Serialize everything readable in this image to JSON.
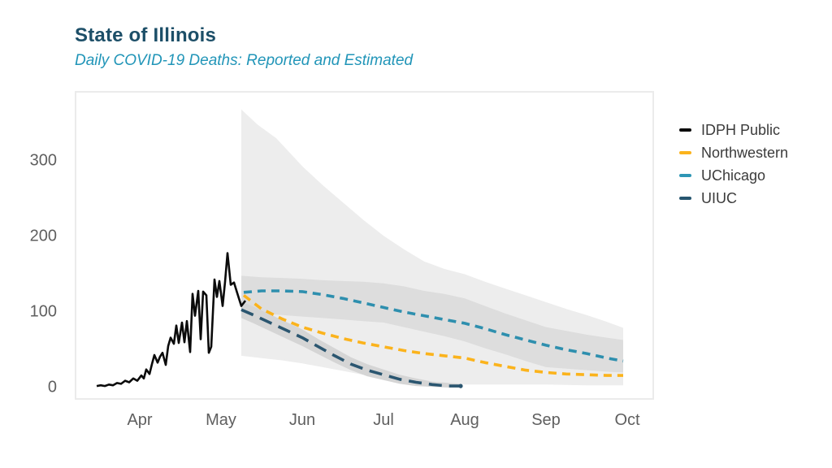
{
  "header": {
    "title": "State of Illinois",
    "subtitle": "Daily COVID-19 Deaths: Reported and Estimated"
  },
  "colors": {
    "title": "#1d4f68",
    "subtitle": "#2195b8",
    "axis_text": "#5f5f5f",
    "plot_border": "#ebebeb",
    "idph": "#0b0b0b",
    "northwestern": "#fbb31c",
    "uchicago": "#2e8fae",
    "uiuc": "#2b5670",
    "band_wide": "#ededed",
    "band_inner": "#dddddd",
    "band_uiuc": "#d5d5d5"
  },
  "legend": {
    "items": [
      {
        "id": "idph",
        "label": "IDPH Public",
        "color": "#0b0b0b"
      },
      {
        "id": "northwestern",
        "label": "Northwestern",
        "color": "#fbb31c"
      },
      {
        "id": "uchicago",
        "label": "UChicago",
        "color": "#2e96b5"
      },
      {
        "id": "uiuc",
        "label": "UIUC",
        "color": "#27566f"
      }
    ]
  },
  "chart_data": {
    "type": "line",
    "title": "State of Illinois",
    "subtitle": "Daily COVID-19 Deaths: Reported and Estimated",
    "xlabel": "",
    "ylabel": "",
    "x_unit": "months after Apr 1 (0 = Apr 1, 1 = May 1, ...)",
    "x_ticks": [
      {
        "t": 0,
        "label": "Apr"
      },
      {
        "t": 1,
        "label": "May"
      },
      {
        "t": 2,
        "label": "Jun"
      },
      {
        "t": 3,
        "label": "Jul"
      },
      {
        "t": 4,
        "label": "Aug"
      },
      {
        "t": 5,
        "label": "Sep"
      },
      {
        "t": 6,
        "label": "Oct"
      }
    ],
    "y_ticks": [
      0,
      100,
      200,
      300
    ],
    "ylim": [
      0,
      392
    ],
    "grid": false,
    "legend_position": "right-outside",
    "series": [
      {
        "id": "idph",
        "name": "IDPH Public",
        "style": "solid",
        "color": "#0b0b0b",
        "width": 2.6,
        "points": [
          [
            -0.53,
            2
          ],
          [
            -0.48,
            3
          ],
          [
            -0.43,
            2
          ],
          [
            -0.38,
            4
          ],
          [
            -0.33,
            3
          ],
          [
            -0.28,
            6
          ],
          [
            -0.23,
            5
          ],
          [
            -0.18,
            9
          ],
          [
            -0.13,
            7
          ],
          [
            -0.08,
            12
          ],
          [
            -0.03,
            9
          ],
          [
            0.02,
            16
          ],
          [
            0.05,
            12
          ],
          [
            0.08,
            24
          ],
          [
            0.12,
            18
          ],
          [
            0.15,
            31
          ],
          [
            0.18,
            43
          ],
          [
            0.22,
            33
          ],
          [
            0.25,
            41
          ],
          [
            0.28,
            46
          ],
          [
            0.32,
            30
          ],
          [
            0.35,
            55
          ],
          [
            0.38,
            66
          ],
          [
            0.42,
            58
          ],
          [
            0.45,
            82
          ],
          [
            0.48,
            59
          ],
          [
            0.52,
            86
          ],
          [
            0.55,
            60
          ],
          [
            0.58,
            88
          ],
          [
            0.62,
            47
          ],
          [
            0.65,
            124
          ],
          [
            0.68,
            95
          ],
          [
            0.72,
            128
          ],
          [
            0.75,
            64
          ],
          [
            0.78,
            127
          ],
          [
            0.82,
            122
          ],
          [
            0.85,
            46
          ],
          [
            0.88,
            54
          ],
          [
            0.92,
            143
          ],
          [
            0.95,
            120
          ],
          [
            0.98,
            141
          ],
          [
            1.02,
            108
          ],
          [
            1.05,
            140
          ],
          [
            1.08,
            178
          ],
          [
            1.12,
            136
          ],
          [
            1.16,
            139
          ],
          [
            1.2,
            125
          ],
          [
            1.25,
            108
          ],
          [
            1.3,
            115
          ]
        ]
      },
      {
        "id": "northwestern",
        "name": "Northwestern",
        "style": "dashed",
        "color": "#fbb31c",
        "width": 3.6,
        "dash": "10 7",
        "points": [
          [
            1.28,
            122
          ],
          [
            1.5,
            104
          ],
          [
            1.75,
            91
          ],
          [
            2.0,
            80
          ],
          [
            2.25,
            72
          ],
          [
            2.5,
            65
          ],
          [
            2.75,
            59
          ],
          [
            3.0,
            54
          ],
          [
            3.25,
            49
          ],
          [
            3.5,
            45
          ],
          [
            3.75,
            42
          ],
          [
            4.0,
            39
          ],
          [
            4.25,
            33
          ],
          [
            4.5,
            28
          ],
          [
            4.75,
            23
          ],
          [
            5.0,
            20
          ],
          [
            5.25,
            18
          ],
          [
            5.5,
            17
          ],
          [
            5.75,
            16
          ],
          [
            5.95,
            16
          ]
        ]
      },
      {
        "id": "uchicago",
        "name": "UChicago",
        "style": "dashed",
        "color": "#2e8fae",
        "width": 3.6,
        "dash": "10 7",
        "points": [
          [
            1.28,
            126
          ],
          [
            1.5,
            128
          ],
          [
            1.75,
            128
          ],
          [
            2.0,
            127
          ],
          [
            2.25,
            123
          ],
          [
            2.5,
            118
          ],
          [
            2.75,
            112
          ],
          [
            3.0,
            106
          ],
          [
            3.25,
            100
          ],
          [
            3.5,
            95
          ],
          [
            3.75,
            90
          ],
          [
            4.0,
            85
          ],
          [
            4.25,
            78
          ],
          [
            4.5,
            70
          ],
          [
            4.75,
            63
          ],
          [
            5.0,
            56
          ],
          [
            5.25,
            50
          ],
          [
            5.5,
            45
          ],
          [
            5.75,
            39
          ],
          [
            5.95,
            35
          ]
        ]
      },
      {
        "id": "uiuc",
        "name": "UIUC",
        "style": "dashed",
        "color": "#2b5670",
        "width": 3.6,
        "dash": "16 9",
        "end_marker": true,
        "points": [
          [
            1.25,
            103
          ],
          [
            1.4,
            96
          ],
          [
            1.6,
            86
          ],
          [
            1.8,
            76
          ],
          [
            2.0,
            66
          ],
          [
            2.2,
            54
          ],
          [
            2.4,
            42
          ],
          [
            2.6,
            31
          ],
          [
            2.8,
            23
          ],
          [
            3.0,
            17
          ],
          [
            3.2,
            11
          ],
          [
            3.4,
            7
          ],
          [
            3.6,
            4
          ],
          [
            3.8,
            2
          ],
          [
            3.95,
            2
          ]
        ]
      }
    ],
    "bands": [
      {
        "id": "uchicago-wide",
        "name": "UChicago wide interval",
        "color": "#ededed",
        "upper": [
          [
            1.25,
            368
          ],
          [
            1.45,
            348
          ],
          [
            1.68,
            330
          ],
          [
            2.0,
            293
          ],
          [
            2.25,
            268
          ],
          [
            2.5,
            245
          ],
          [
            2.75,
            222
          ],
          [
            3.0,
            201
          ],
          [
            3.25,
            183
          ],
          [
            3.5,
            167
          ],
          [
            3.75,
            157
          ],
          [
            4.0,
            150
          ],
          [
            4.25,
            140
          ],
          [
            4.5,
            131
          ],
          [
            4.75,
            122
          ],
          [
            5.0,
            113
          ],
          [
            5.25,
            104
          ],
          [
            5.5,
            96
          ],
          [
            5.75,
            87
          ],
          [
            5.95,
            79
          ]
        ],
        "lower": [
          [
            1.25,
            42
          ],
          [
            1.5,
            39
          ],
          [
            1.75,
            36
          ],
          [
            2.0,
            32
          ],
          [
            2.25,
            27
          ],
          [
            2.5,
            22
          ],
          [
            2.75,
            17
          ],
          [
            3.0,
            12
          ],
          [
            3.25,
            9
          ],
          [
            3.5,
            7
          ],
          [
            3.75,
            5
          ],
          [
            4.0,
            4
          ],
          [
            4.5,
            4
          ],
          [
            5.0,
            4
          ],
          [
            5.5,
            3
          ],
          [
            5.95,
            3
          ]
        ]
      },
      {
        "id": "uchicago-inner",
        "name": "UChicago inner interval",
        "color": "#dddddd",
        "upper": [
          [
            1.25,
            148
          ],
          [
            1.5,
            146
          ],
          [
            1.75,
            145
          ],
          [
            2.0,
            144
          ],
          [
            2.25,
            142
          ],
          [
            2.5,
            141
          ],
          [
            2.75,
            140
          ],
          [
            3.0,
            138
          ],
          [
            3.25,
            134
          ],
          [
            3.5,
            128
          ],
          [
            3.75,
            124
          ],
          [
            4.0,
            118
          ],
          [
            4.25,
            108
          ],
          [
            4.5,
            98
          ],
          [
            4.75,
            89
          ],
          [
            5.0,
            80
          ],
          [
            5.25,
            75
          ],
          [
            5.5,
            70
          ],
          [
            5.75,
            66
          ],
          [
            5.95,
            63
          ]
        ],
        "lower": [
          [
            1.25,
            101
          ],
          [
            1.5,
            98
          ],
          [
            1.75,
            96
          ],
          [
            2.0,
            94
          ],
          [
            2.25,
            92
          ],
          [
            2.5,
            90
          ],
          [
            2.75,
            88
          ],
          [
            3.0,
            86
          ],
          [
            3.25,
            80
          ],
          [
            3.5,
            74
          ],
          [
            3.75,
            68
          ],
          [
            4.0,
            61
          ],
          [
            4.25,
            52
          ],
          [
            4.5,
            44
          ],
          [
            4.75,
            35
          ],
          [
            5.0,
            27
          ],
          [
            5.25,
            25
          ],
          [
            5.5,
            23
          ],
          [
            5.75,
            21
          ],
          [
            5.95,
            20
          ]
        ]
      },
      {
        "id": "uiuc-band",
        "name": "UIUC interval",
        "color": "#d5d5d5",
        "upper": [
          [
            1.25,
            114
          ],
          [
            1.4,
            107
          ],
          [
            1.6,
            97
          ],
          [
            1.8,
            87
          ],
          [
            2.0,
            77
          ],
          [
            2.2,
            64
          ],
          [
            2.4,
            52
          ],
          [
            2.6,
            40
          ],
          [
            2.8,
            31
          ],
          [
            3.0,
            24
          ],
          [
            3.2,
            17
          ],
          [
            3.4,
            12
          ],
          [
            3.6,
            8
          ],
          [
            3.8,
            6
          ],
          [
            3.95,
            5
          ]
        ],
        "lower": [
          [
            1.25,
            92
          ],
          [
            1.4,
            85
          ],
          [
            1.6,
            75
          ],
          [
            1.8,
            65
          ],
          [
            2.0,
            55
          ],
          [
            2.2,
            44
          ],
          [
            2.4,
            33
          ],
          [
            2.6,
            23
          ],
          [
            2.8,
            15
          ],
          [
            3.0,
            10
          ],
          [
            3.2,
            5
          ],
          [
            3.4,
            2
          ],
          [
            3.6,
            1
          ],
          [
            3.8,
            0
          ],
          [
            3.95,
            0
          ]
        ]
      }
    ]
  },
  "layout_values": {
    "note_visible_axis_only": true
  }
}
